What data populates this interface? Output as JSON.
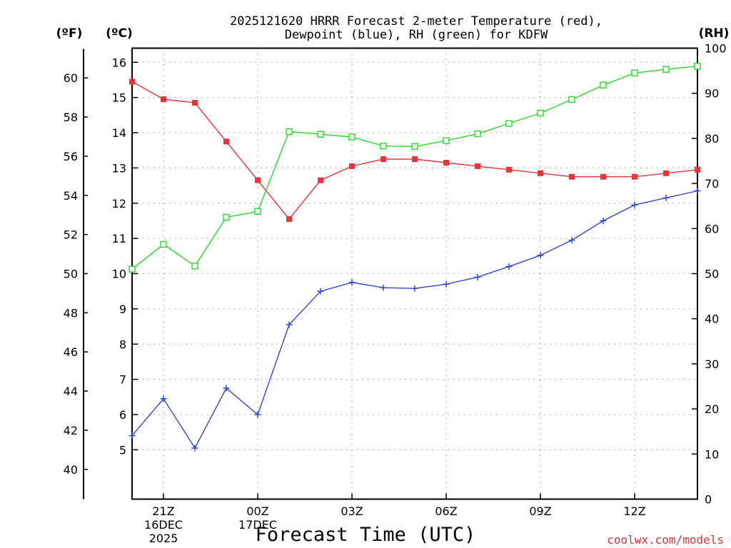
{
  "chart_data": {
    "type": "line",
    "title_lines": [
      "2025121620 HRRR Forecast 2-meter Temperature (red),",
      "Dewpoint (blue), RH (green) for KDFW"
    ],
    "x_hours": [
      20,
      21,
      22,
      23,
      24,
      25,
      26,
      27,
      28,
      29,
      30,
      31,
      32,
      33,
      34,
      35,
      36,
      37,
      38
    ],
    "x_ticks": [
      {
        "hour": 21,
        "lines": [
          "21Z",
          "16DEC",
          "2025"
        ]
      },
      {
        "hour": 24,
        "lines": [
          "00Z",
          "17DEC"
        ]
      },
      {
        "hour": 27,
        "lines": [
          "03Z"
        ]
      },
      {
        "hour": 30,
        "lines": [
          "06Z"
        ]
      },
      {
        "hour": 33,
        "lines": [
          "09Z"
        ]
      },
      {
        "hour": 36,
        "lines": [
          "12Z"
        ]
      }
    ],
    "xlabel": "Forecast Time (UTC)",
    "xlim": [
      20,
      38
    ],
    "axes": {
      "celsius": {
        "label": "(ºC)",
        "range": [
          3.6,
          16.4
        ],
        "ticks": [
          "5",
          "6",
          "7",
          "8",
          "9",
          "10",
          "11",
          "12",
          "13",
          "14",
          "15",
          "16"
        ]
      },
      "fahrenheit": {
        "label": "(ºF)",
        "ticks": [
          "40",
          "42",
          "44",
          "46",
          "48",
          "50",
          "52",
          "54",
          "56",
          "58",
          "60"
        ]
      },
      "rh": {
        "label": "(RH)",
        "range": [
          0,
          100
        ],
        "ticks": [
          "0",
          "10",
          "20",
          "30",
          "40",
          "50",
          "60",
          "70",
          "80",
          "90",
          "100"
        ]
      }
    },
    "series": [
      {
        "name": "2-meter Temperature",
        "axis": "celsius",
        "color": "#ee3338",
        "marker": "filled-square",
        "values": [
          15.45,
          14.95,
          14.85,
          13.75,
          12.65,
          11.55,
          12.65,
          13.05,
          13.25,
          13.25,
          13.15,
          13.05,
          12.95,
          12.85,
          12.75,
          12.75,
          12.75,
          12.85,
          12.95
        ]
      },
      {
        "name": "Dewpoint",
        "axis": "celsius",
        "color": "#3344dd",
        "marker": "plus",
        "values": [
          5.4,
          6.45,
          5.05,
          6.75,
          6.0,
          8.55,
          9.5,
          9.75,
          9.6,
          9.58,
          9.7,
          9.9,
          10.2,
          10.52,
          10.95,
          11.5,
          11.95,
          12.15,
          12.35
        ]
      },
      {
        "name": "RH",
        "axis": "rh",
        "color": "#22dd22",
        "marker": "open-square",
        "values": [
          51,
          56.5,
          51.7,
          62.5,
          63.8,
          81.5,
          80.9,
          80.3,
          78.3,
          78.2,
          79.5,
          81.0,
          83.3,
          85.6,
          88.6,
          91.8,
          94.5,
          95.3,
          96.0
        ]
      }
    ],
    "grid": true
  },
  "credit": "coolwx.com/models"
}
